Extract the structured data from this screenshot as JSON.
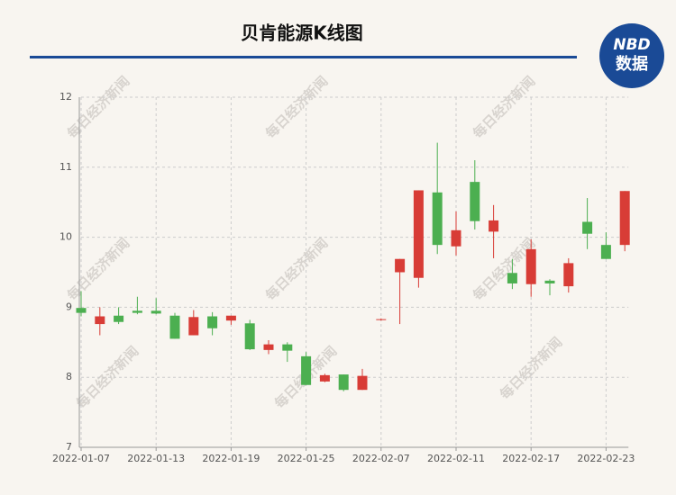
{
  "chart_data": {
    "type": "candlestick",
    "title": "贝肯能源K线图",
    "watermark": "每日经济新闻",
    "logo": {
      "top": "NBD",
      "bottom": "数据"
    },
    "categories": [
      "2022-01-07",
      null,
      null,
      null,
      "2022-01-13",
      null,
      null,
      null,
      "2022-01-19",
      null,
      null,
      null,
      "2022-01-25",
      null,
      null,
      null,
      "2022-02-07",
      null,
      null,
      null,
      "2022-02-11",
      null,
      null,
      null,
      "2022-02-17",
      null,
      null,
      null,
      "2022-02-23",
      null
    ],
    "open": [
      8.99,
      8.76,
      8.88,
      8.95,
      8.95,
      8.88,
      8.6,
      8.87,
      8.81,
      8.77,
      8.39,
      8.47,
      8.3,
      7.94,
      8.04,
      7.82,
      8.82,
      9.5,
      9.42,
      10.64,
      9.87,
      10.79,
      10.08,
      9.49,
      9.33,
      9.38,
      9.3,
      10.22,
      9.89,
      9.89
    ],
    "close": [
      8.92,
      8.87,
      8.79,
      8.92,
      8.91,
      8.55,
      8.86,
      8.7,
      8.88,
      8.4,
      8.47,
      8.38,
      7.89,
      8.03,
      7.82,
      8.02,
      8.83,
      9.69,
      10.67,
      9.89,
      10.1,
      10.23,
      10.24,
      9.34,
      9.83,
      9.34,
      9.63,
      10.05,
      9.69,
      10.66
    ],
    "low": [
      8.87,
      8.6,
      8.76,
      8.9,
      8.9,
      8.55,
      8.6,
      8.6,
      8.75,
      8.39,
      8.33,
      8.22,
      7.89,
      7.93,
      7.8,
      7.82,
      8.81,
      8.76,
      9.28,
      9.76,
      9.74,
      10.11,
      9.7,
      9.26,
      9.15,
      9.17,
      9.21,
      9.83,
      9.69,
      9.8
    ],
    "high": [
      9.23,
      9.0,
      9.0,
      9.15,
      9.13,
      8.92,
      8.96,
      8.93,
      8.88,
      8.82,
      8.53,
      8.5,
      8.36,
      8.05,
      8.04,
      8.12,
      8.84,
      9.69,
      10.67,
      11.35,
      10.37,
      11.1,
      10.46,
      9.69,
      9.97,
      9.4,
      9.7,
      10.56,
      10.07,
      10.66
    ],
    "up_color": "#d83c36",
    "down_color": "#4caf50",
    "ylim": [
      7,
      12
    ],
    "yticks": [
      7,
      8,
      9,
      10,
      11,
      12
    ],
    "grid": true
  }
}
